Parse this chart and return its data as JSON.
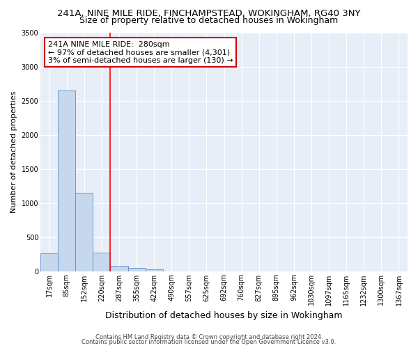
{
  "title": "241A, NINE MILE RIDE, FINCHAMPSTEAD, WOKINGHAM, RG40 3NY",
  "subtitle": "Size of property relative to detached houses in Wokingham",
  "xlabel": "Distribution of detached houses by size in Wokingham",
  "ylabel": "Number of detached properties",
  "bar_color": "#c5d8ed",
  "bar_edge_color": "#5b8fc7",
  "background_color": "#e8eef8",
  "grid_color": "#ffffff",
  "categories": [
    "17sqm",
    "85sqm",
    "152sqm",
    "220sqm",
    "287sqm",
    "355sqm",
    "422sqm",
    "490sqm",
    "557sqm",
    "625sqm",
    "692sqm",
    "760sqm",
    "827sqm",
    "895sqm",
    "962sqm",
    "1030sqm",
    "1097sqm",
    "1165sqm",
    "1232sqm",
    "1300sqm",
    "1367sqm"
  ],
  "values": [
    270,
    2650,
    1150,
    280,
    85,
    55,
    35,
    0,
    0,
    0,
    0,
    0,
    0,
    0,
    0,
    0,
    0,
    0,
    0,
    0,
    0
  ],
  "red_line_x": 3.5,
  "annotation_text": "241A NINE MILE RIDE:  280sqm\n← 97% of detached houses are smaller (4,301)\n3% of semi-detached houses are larger (130) →",
  "annotation_box_color": "#cc0000",
  "ylim": [
    0,
    3500
  ],
  "yticks": [
    0,
    500,
    1000,
    1500,
    2000,
    2500,
    3000,
    3500
  ],
  "footer_line1": "Contains HM Land Registry data © Crown copyright and database right 2024.",
  "footer_line2": "Contains public sector information licensed under the Open Government Licence v3.0.",
  "title_fontsize": 9.5,
  "subtitle_fontsize": 9,
  "xlabel_fontsize": 9,
  "ylabel_fontsize": 8,
  "tick_fontsize": 7,
  "footer_fontsize": 6,
  "ann_fontsize": 8
}
